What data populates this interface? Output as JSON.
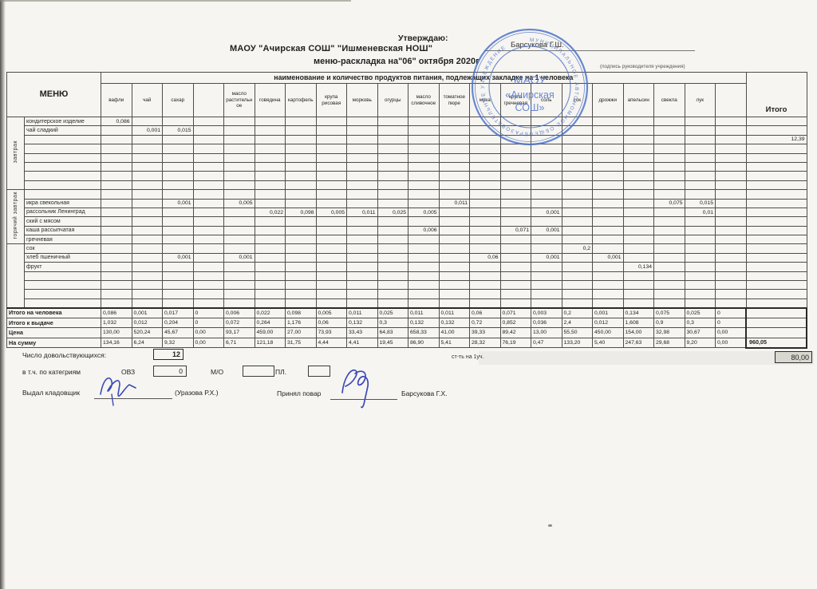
{
  "page": {
    "approve_label": "Утверждаю:",
    "approver_name": "Барсукова Г.Ш.",
    "approver_caption": "(подпись руководителя учреждения)",
    "org_title": "МАОУ \"Ачирская СОШ\" \"Ишменевская НОШ\"",
    "doc_title": "меню-раскладка на\"06\" октября 2020г"
  },
  "stamp": {
    "color": "#4a6fc9",
    "ring_text": "МУНИЦИПАЛЬНОЕ АВТОНОМНОЕ ОБЩЕОБРАЗОВАТЕЛЬНОЕ УЧРЕЖДЕНИЕ",
    "center_line1": "МАОУ",
    "center_line2": "«Ачирская",
    "center_line3": "СОШ»"
  },
  "table": {
    "menu_header": "МЕНЮ",
    "banner": "наименование и количество продуктов питания, подлежащих закладке на 1 человека",
    "total_header": "Итого",
    "columns": [
      "вафли",
      "чай",
      "сахар",
      "",
      "масло растительное",
      "говядина",
      "картофель",
      "крупа рисовая",
      "морковь",
      "огурцы",
      "масло сливочное",
      "томатное пюре",
      "мука",
      "крупа гречневая",
      "соль",
      "сок",
      "дрожжи",
      "апельсин",
      "свекла",
      "лук",
      ""
    ],
    "sections": [
      {
        "label": "завтрак",
        "rows": [
          {
            "dish": "кондитерское изделие",
            "values": {
              "0": "0,086"
            },
            "total": ""
          },
          {
            "dish": "чай сладкий",
            "values": {
              "1": "0,001",
              "2": "0,015"
            },
            "total": ""
          },
          {
            "dish": "",
            "values": {},
            "total": "12,39"
          },
          {
            "dish": "",
            "values": {},
            "total": ""
          },
          {
            "dish": "",
            "values": {},
            "total": ""
          },
          {
            "dish": "",
            "values": {},
            "total": ""
          },
          {
            "dish": "",
            "values": {},
            "total": ""
          },
          {
            "dish": "",
            "values": {},
            "total": ""
          }
        ]
      },
      {
        "label": "горячий завтрак",
        "rows": [
          {
            "dish": "",
            "values": {},
            "total": ""
          },
          {
            "dish": "икра свекольная",
            "values": {
              "2": "0,001",
              "4": "0,005",
              "11": "0,011",
              "18": "0,075",
              "19": "0,015"
            },
            "total": ""
          },
          {
            "dish": "рассольник Ленинград",
            "values": {
              "5": "0,022",
              "6": "0,098",
              "7": "0,005",
              "8": "0,011",
              "9": "0,025",
              "10": "0,005",
              "14": "0,001",
              "19": "0,01"
            },
            "total": ""
          },
          {
            "dish": "ский с мясом",
            "values": {},
            "total": ""
          },
          {
            "dish": "каша рассыпчатая",
            "values": {
              "10": "0,006",
              "13": "0,071",
              "14": "0,001"
            },
            "total": ""
          },
          {
            "dish": "гречневая",
            "values": {},
            "total": ""
          }
        ]
      },
      {
        "label": "",
        "rows": [
          {
            "dish": "сок",
            "values": {
              "15": "0,2"
            },
            "total": ""
          },
          {
            "dish": "хлеб пшеничный",
            "values": {
              "2": "0,001",
              "4": "0,001",
              "12": "0,06",
              "14": "0,001",
              "16": "0,001"
            },
            "total": ""
          },
          {
            "dish": "фрукт",
            "values": {
              "17": "0,134"
            },
            "total": ""
          },
          {
            "dish": "",
            "values": {},
            "total": ""
          },
          {
            "dish": "",
            "values": {},
            "total": ""
          },
          {
            "dish": "",
            "values": {},
            "total": ""
          },
          {
            "dish": "",
            "values": {},
            "total": ""
          }
        ]
      }
    ],
    "summary_rows": [
      {
        "label": "Итого на человека",
        "values": [
          "0,086",
          "0,001",
          "0,017",
          "0",
          "0,006",
          "0,022",
          "0,098",
          "0,005",
          "0,011",
          "0,025",
          "0,011",
          "0,011",
          "0,06",
          "0,071",
          "0,003",
          "0,2",
          "0,001",
          "0,134",
          "0,075",
          "0,025",
          "0"
        ],
        "total": ""
      },
      {
        "label": "Итого к выдаче",
        "values": [
          "1,032",
          "0,012",
          "0,204",
          "0",
          "0,072",
          "0,264",
          "1,176",
          "0,06",
          "0,132",
          "0,3",
          "0,132",
          "0,132",
          "0,72",
          "0,852",
          "0,036",
          "2,4",
          "0,012",
          "1,608",
          "0,9",
          "0,3",
          "0"
        ],
        "total": ""
      },
      {
        "label": "Цена",
        "values": [
          "130,00",
          "520,24",
          "45,67",
          "0,00",
          "93,17",
          "459,00",
          "27,00",
          "73,93",
          "33,43",
          "64,83",
          "658,33",
          "41,00",
          "39,33",
          "89,42",
          "13,00",
          "55,50",
          "450,00",
          "154,00",
          "32,98",
          "30,67",
          "0,00"
        ],
        "total": ""
      },
      {
        "label": "На сумму",
        "values": [
          "134,16",
          "6,24",
          "9,32",
          "0,00",
          "6,71",
          "121,18",
          "31,75",
          "4,44",
          "4,41",
          "19,45",
          "86,90",
          "5,41",
          "28,32",
          "76,19",
          "0,47",
          "133,20",
          "5,40",
          "247,63",
          "29,68",
          "9,20",
          "0,00"
        ],
        "total": "960,05"
      }
    ]
  },
  "footer": {
    "beneficiaries_label": "Число довольствующихся:",
    "beneficiaries_value": "12",
    "cost_label": "ст-ть на 1уч.",
    "cost_value": "80,00",
    "categories_label": "в т.ч. по категриям",
    "cat1_label": "ОВЗ",
    "cat1_value": "0",
    "cat2_label": "М/О",
    "cat2_value": "",
    "cat3_label": "ПЛ.",
    "cat3_value": "",
    "issued_label": "Выдал кладовщик",
    "issued_name": "(Уразова Р.Х.)",
    "received_label": "Принял повар",
    "received_name": "Барсукова Г.Х."
  }
}
